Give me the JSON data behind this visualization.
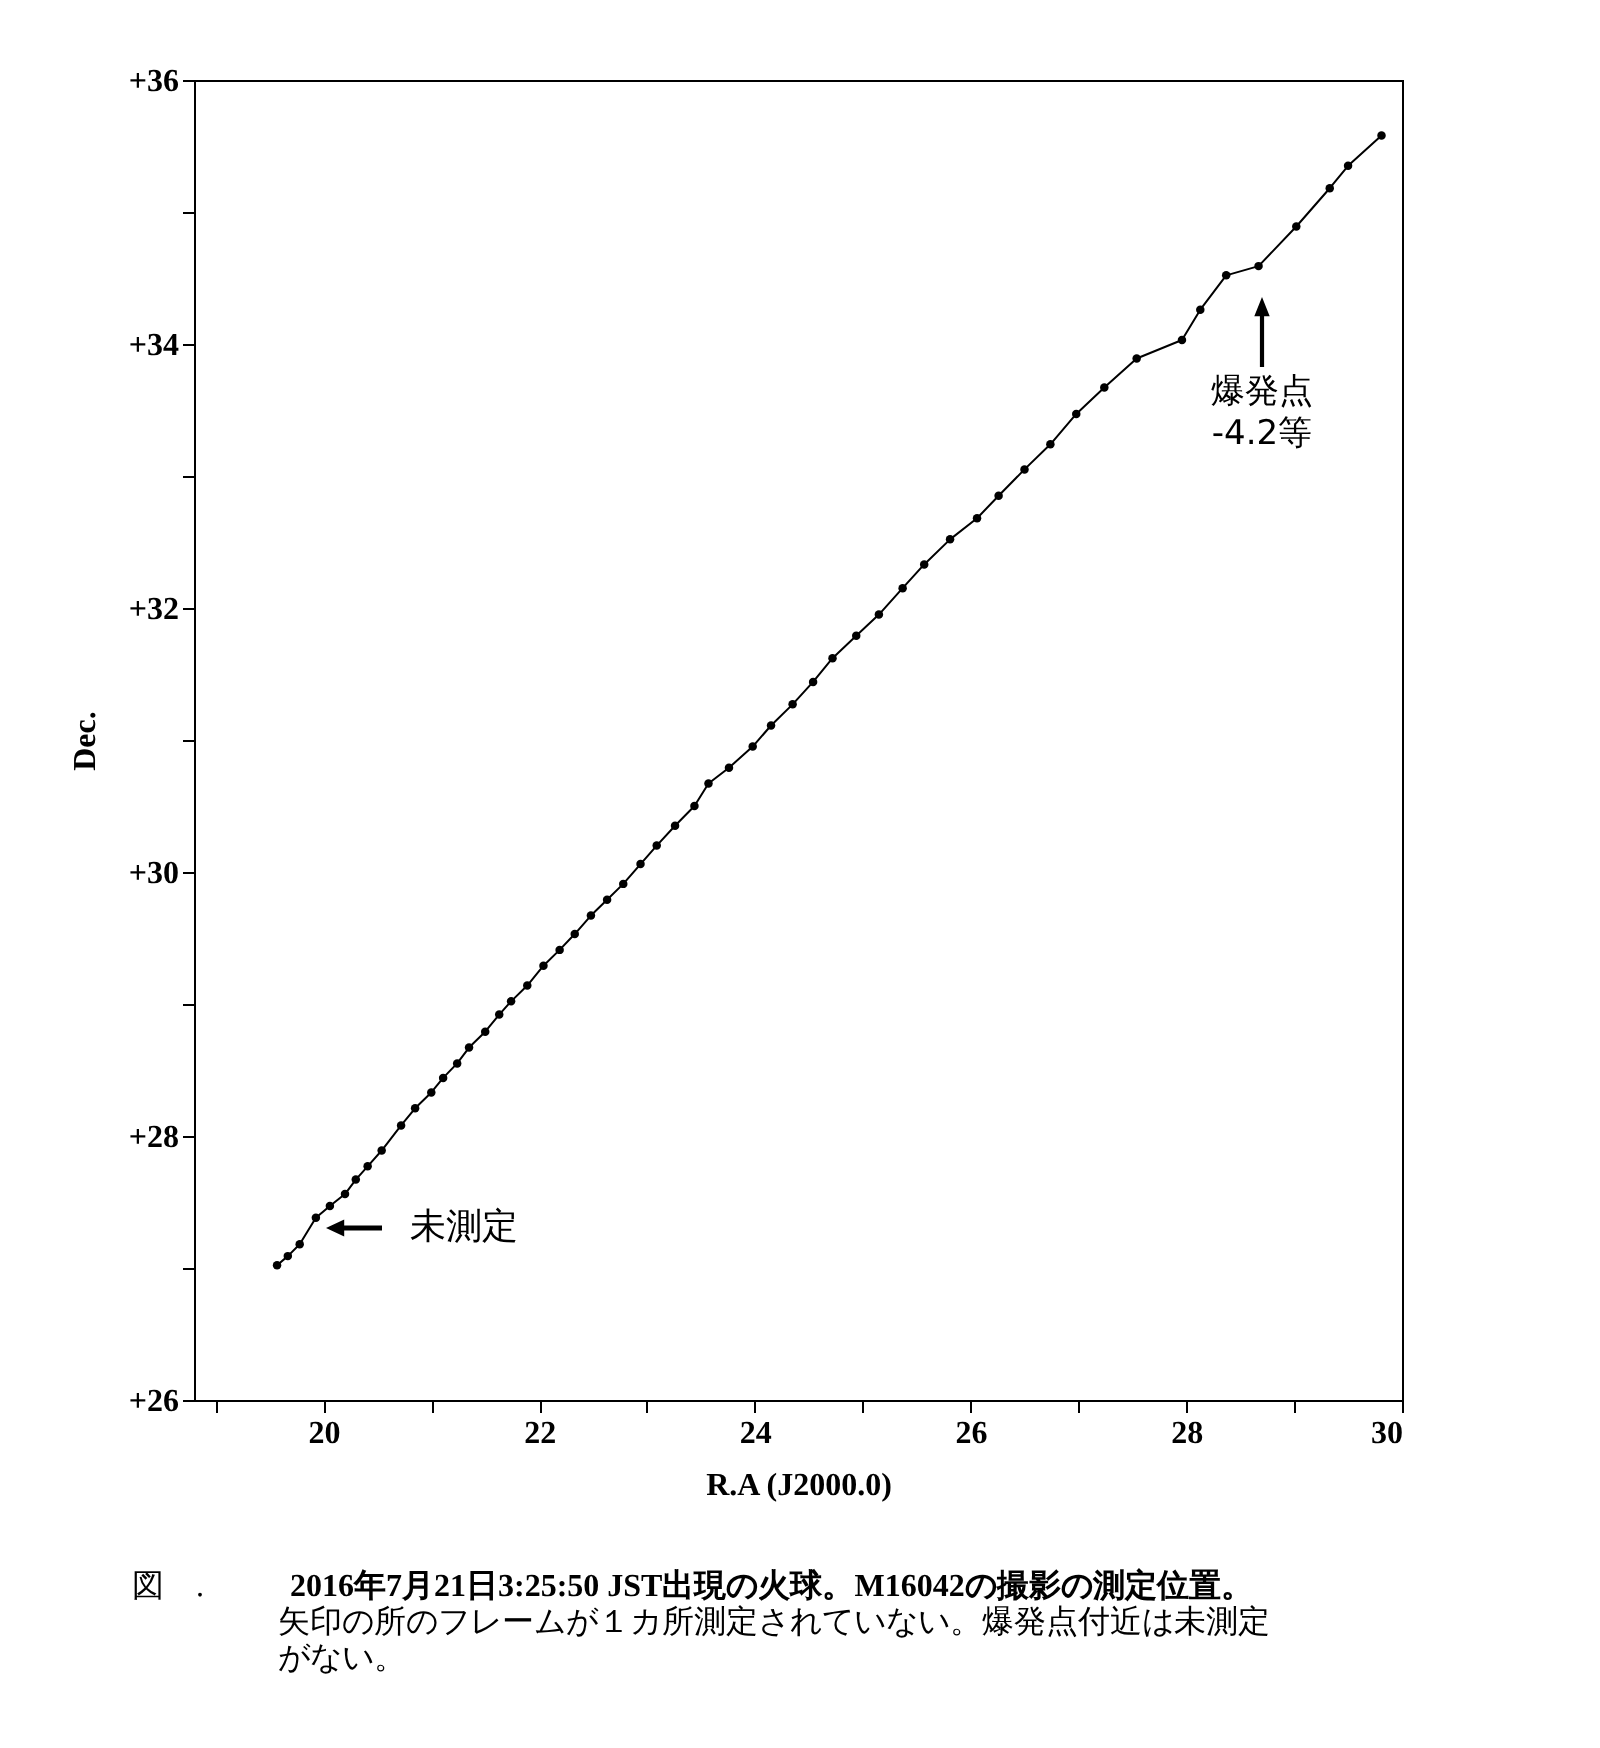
{
  "chart_data": {
    "type": "line",
    "xlabel": "R.A (J2000.0)",
    "ylabel": "Dec.",
    "marker": "circle",
    "line_style": "solid",
    "grid": false,
    "legend": false,
    "xlim": [
      18.8,
      30
    ],
    "ylim": [
      26,
      36
    ],
    "xticks": [
      {
        "value": 19,
        "label": null
      },
      20,
      {
        "value": 21,
        "label": null
      },
      22,
      {
        "value": 23,
        "label": null
      },
      24,
      {
        "value": 25,
        "label": null
      },
      26,
      {
        "value": 27,
        "label": null
      },
      28,
      {
        "value": 29,
        "label": null
      },
      30
    ],
    "yticks": [
      {
        "value": 26,
        "label": "+26"
      },
      {
        "value": 27,
        "label": null
      },
      {
        "value": 28,
        "label": "+28"
      },
      {
        "value": 29,
        "label": null
      },
      {
        "value": 30,
        "label": "+30"
      },
      {
        "value": 31,
        "label": null
      },
      {
        "value": 32,
        "label": "+32"
      },
      {
        "value": 33,
        "label": null
      },
      {
        "value": 34,
        "label": "+34"
      },
      {
        "value": 35,
        "label": null
      },
      {
        "value": 36,
        "label": "+36"
      }
    ],
    "series": [
      {
        "color": "#000000",
        "x": [
          19.57,
          19.67,
          19.78,
          19.93,
          20.06,
          20.2,
          20.3,
          20.41,
          20.54,
          20.72,
          20.85,
          21.0,
          21.11,
          21.24,
          21.35,
          21.5,
          21.63,
          21.74,
          21.89,
          22.04,
          22.19,
          22.33,
          22.48,
          22.63,
          22.78,
          22.94,
          23.09,
          23.26,
          23.44,
          23.57,
          23.76,
          23.98,
          24.15,
          24.35,
          24.54,
          24.72,
          24.94,
          25.15,
          25.37,
          25.57,
          25.81,
          26.06,
          26.26,
          26.5,
          26.74,
          26.98,
          27.24,
          27.54,
          27.96,
          28.13,
          28.37,
          28.67,
          29.02,
          29.33,
          29.5,
          29.81
        ],
        "values": [
          27.02,
          27.09,
          27.18,
          27.38,
          27.47,
          27.56,
          27.67,
          27.77,
          27.89,
          28.08,
          28.21,
          28.33,
          28.44,
          28.55,
          28.67,
          28.79,
          28.92,
          29.02,
          29.14,
          29.29,
          29.41,
          29.53,
          29.67,
          29.79,
          29.91,
          30.06,
          30.2,
          30.35,
          30.5,
          30.67,
          30.79,
          30.95,
          31.11,
          31.27,
          31.44,
          31.62,
          31.79,
          31.95,
          32.15,
          32.33,
          32.52,
          32.68,
          32.85,
          33.05,
          33.24,
          33.47,
          33.67,
          33.89,
          34.03,
          34.26,
          34.52,
          34.59,
          34.89,
          35.18,
          35.35,
          35.58
        ]
      }
    ],
    "annotations": [
      "未測定",
      "爆発点\n-4.2等",
      "図　.",
      "2016年7月21日3:25:50 JST出現の火球。M16042の撮影の測定位置。",
      "矢印の所のフレームが１カ所測定されていない。爆発点付近は未測定",
      "がない。"
    ]
  }
}
